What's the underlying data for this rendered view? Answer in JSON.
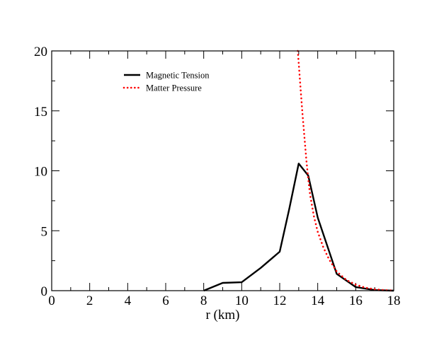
{
  "chart_data": {
    "type": "line",
    "title": "",
    "xlabel": "r (km)",
    "ylabel": "",
    "xlim": [
      0,
      18
    ],
    "ylim": [
      0,
      20
    ],
    "x_ticks": [
      "0",
      "2",
      "4",
      "6",
      "8",
      "10",
      "12",
      "14",
      "16",
      "18"
    ],
    "y_ticks": [
      "0",
      "5",
      "10",
      "15",
      "20"
    ],
    "grid": false,
    "legend_position": "top-left",
    "series": [
      {
        "name": "Magnetic Tension",
        "style": "solid",
        "color": "#000000",
        "x": [
          8,
          9,
          10,
          11,
          12,
          12.5,
          13,
          13.5,
          14,
          15,
          16,
          17,
          18
        ],
        "y": [
          0,
          0.65,
          0.7,
          1.9,
          3.25,
          6.8,
          10.6,
          9.6,
          6.1,
          1.4,
          0.3,
          0.05,
          0
        ]
      },
      {
        "name": "Matter Pressure",
        "style": "dotted",
        "color": "#ff0000",
        "x": [
          12.95,
          13,
          13.1,
          13.2,
          13.3,
          13.4,
          13.5,
          13.6,
          13.8,
          14,
          14.3,
          14.6,
          15,
          15.5,
          16,
          16.5,
          17,
          17.5,
          18
        ],
        "y": [
          20,
          19.0,
          16.8,
          14.7,
          12.8,
          10.9,
          9.3,
          8.0,
          6.2,
          4.9,
          3.6,
          2.6,
          1.6,
          0.9,
          0.5,
          0.25,
          0.12,
          0.05,
          0.02
        ]
      }
    ]
  }
}
